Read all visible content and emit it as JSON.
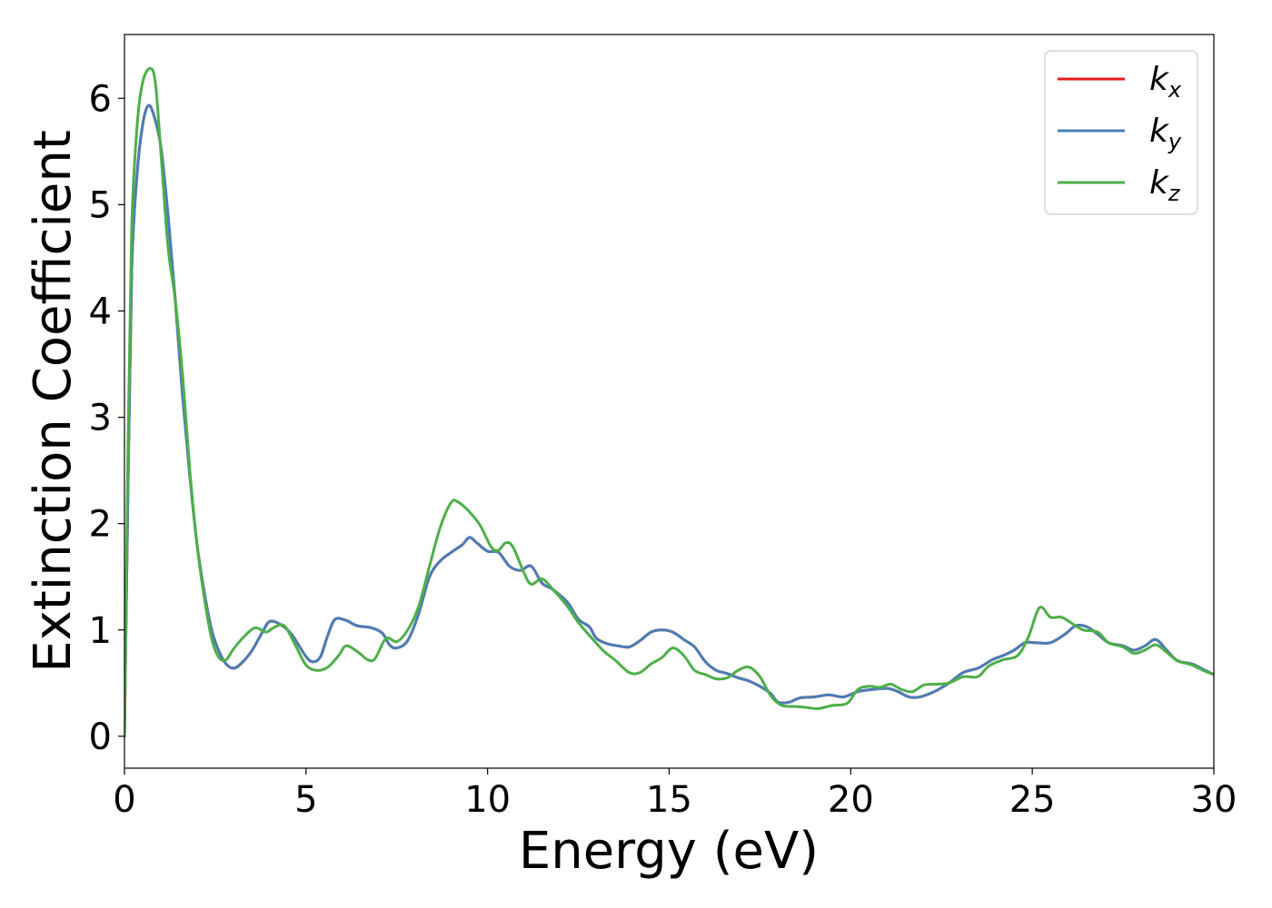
{
  "chart_data": {
    "type": "line",
    "xlabel": "Energy (eV)",
    "ylabel": "Extinction Coefficient",
    "xlim": [
      0,
      30
    ],
    "ylim": [
      -0.3,
      6.6
    ],
    "xticks": [
      0,
      5,
      10,
      15,
      20,
      25,
      30
    ],
    "xtick_labels": [
      "0",
      "5",
      "10",
      "15",
      "20",
      "25",
      "30"
    ],
    "yticks": [
      0,
      1,
      2,
      3,
      4,
      5,
      6
    ],
    "ytick_labels": [
      "0",
      "1",
      "2",
      "3",
      "4",
      "5",
      "6"
    ],
    "grid": false,
    "legend_position": "top-right",
    "series": [
      {
        "name": "k_x",
        "legend_main": "k",
        "legend_sub": "x",
        "color": "#e41a1c",
        "points": [
          [
            0,
            0
          ],
          [
            0.1,
            2.4
          ],
          [
            0.2,
            4.4
          ],
          [
            0.35,
            5.3
          ],
          [
            0.5,
            5.75
          ],
          [
            0.65,
            5.93
          ],
          [
            0.8,
            5.85
          ],
          [
            1.0,
            5.55
          ],
          [
            1.2,
            4.9
          ],
          [
            1.4,
            4.1
          ],
          [
            1.6,
            3.2
          ],
          [
            1.8,
            2.45
          ],
          [
            2.0,
            1.8
          ],
          [
            2.2,
            1.35
          ],
          [
            2.4,
            1.0
          ],
          [
            2.6,
            0.8
          ],
          [
            2.8,
            0.68
          ],
          [
            3.0,
            0.64
          ],
          [
            3.2,
            0.68
          ],
          [
            3.5,
            0.8
          ],
          [
            3.8,
            0.98
          ],
          [
            4.0,
            1.08
          ],
          [
            4.3,
            1.05
          ],
          [
            4.6,
            0.96
          ],
          [
            5.0,
            0.75
          ],
          [
            5.2,
            0.7
          ],
          [
            5.4,
            0.75
          ],
          [
            5.6,
            0.95
          ],
          [
            5.8,
            1.1
          ],
          [
            6.1,
            1.09
          ],
          [
            6.4,
            1.04
          ],
          [
            6.8,
            1.02
          ],
          [
            7.1,
            0.97
          ],
          [
            7.3,
            0.86
          ],
          [
            7.5,
            0.83
          ],
          [
            7.8,
            0.9
          ],
          [
            8.1,
            1.15
          ],
          [
            8.4,
            1.5
          ],
          [
            8.7,
            1.65
          ],
          [
            9.0,
            1.73
          ],
          [
            9.3,
            1.8
          ],
          [
            9.5,
            1.87
          ],
          [
            9.7,
            1.82
          ],
          [
            10.0,
            1.74
          ],
          [
            10.3,
            1.73
          ],
          [
            10.6,
            1.6
          ],
          [
            10.9,
            1.56
          ],
          [
            11.2,
            1.6
          ],
          [
            11.5,
            1.44
          ],
          [
            11.8,
            1.38
          ],
          [
            12.2,
            1.26
          ],
          [
            12.5,
            1.1
          ],
          [
            12.8,
            1.03
          ],
          [
            13.0,
            0.92
          ],
          [
            13.3,
            0.87
          ],
          [
            13.6,
            0.85
          ],
          [
            13.9,
            0.84
          ],
          [
            14.2,
            0.9
          ],
          [
            14.5,
            0.98
          ],
          [
            14.8,
            1.0
          ],
          [
            15.1,
            0.98
          ],
          [
            15.4,
            0.91
          ],
          [
            15.7,
            0.84
          ],
          [
            16.0,
            0.7
          ],
          [
            16.3,
            0.62
          ],
          [
            16.6,
            0.59
          ],
          [
            16.9,
            0.55
          ],
          [
            17.2,
            0.52
          ],
          [
            17.5,
            0.47
          ],
          [
            17.8,
            0.4
          ],
          [
            18.0,
            0.32
          ],
          [
            18.3,
            0.32
          ],
          [
            18.6,
            0.36
          ],
          [
            19.0,
            0.37
          ],
          [
            19.4,
            0.39
          ],
          [
            19.8,
            0.37
          ],
          [
            20.2,
            0.42
          ],
          [
            20.6,
            0.44
          ],
          [
            21.0,
            0.45
          ],
          [
            21.3,
            0.42
          ],
          [
            21.6,
            0.37
          ],
          [
            21.9,
            0.37
          ],
          [
            22.3,
            0.42
          ],
          [
            22.7,
            0.5
          ],
          [
            23.1,
            0.6
          ],
          [
            23.5,
            0.64
          ],
          [
            23.9,
            0.72
          ],
          [
            24.2,
            0.76
          ],
          [
            24.5,
            0.81
          ],
          [
            24.8,
            0.88
          ],
          [
            25.1,
            0.88
          ],
          [
            25.5,
            0.88
          ],
          [
            25.9,
            0.96
          ],
          [
            26.2,
            1.04
          ],
          [
            26.5,
            1.03
          ],
          [
            26.8,
            0.96
          ],
          [
            27.1,
            0.88
          ],
          [
            27.5,
            0.85
          ],
          [
            27.8,
            0.81
          ],
          [
            28.1,
            0.85
          ],
          [
            28.4,
            0.91
          ],
          [
            28.7,
            0.81
          ],
          [
            29.0,
            0.71
          ],
          [
            29.4,
            0.68
          ],
          [
            29.7,
            0.63
          ],
          [
            30.0,
            0.58
          ]
        ]
      },
      {
        "name": "k_y",
        "legend_main": "k",
        "legend_sub": "y",
        "color": "#4a7eb5",
        "points": [
          [
            0,
            0
          ],
          [
            0.1,
            2.4
          ],
          [
            0.2,
            4.4
          ],
          [
            0.35,
            5.3
          ],
          [
            0.5,
            5.75
          ],
          [
            0.65,
            5.93
          ],
          [
            0.8,
            5.85
          ],
          [
            1.0,
            5.55
          ],
          [
            1.2,
            4.9
          ],
          [
            1.4,
            4.1
          ],
          [
            1.6,
            3.2
          ],
          [
            1.8,
            2.45
          ],
          [
            2.0,
            1.8
          ],
          [
            2.2,
            1.35
          ],
          [
            2.4,
            1.0
          ],
          [
            2.6,
            0.8
          ],
          [
            2.8,
            0.68
          ],
          [
            3.0,
            0.64
          ],
          [
            3.2,
            0.68
          ],
          [
            3.5,
            0.8
          ],
          [
            3.8,
            0.98
          ],
          [
            4.0,
            1.08
          ],
          [
            4.3,
            1.05
          ],
          [
            4.6,
            0.96
          ],
          [
            5.0,
            0.75
          ],
          [
            5.2,
            0.7
          ],
          [
            5.4,
            0.75
          ],
          [
            5.6,
            0.95
          ],
          [
            5.8,
            1.1
          ],
          [
            6.1,
            1.09
          ],
          [
            6.4,
            1.04
          ],
          [
            6.8,
            1.02
          ],
          [
            7.1,
            0.97
          ],
          [
            7.3,
            0.86
          ],
          [
            7.5,
            0.83
          ],
          [
            7.8,
            0.9
          ],
          [
            8.1,
            1.15
          ],
          [
            8.4,
            1.5
          ],
          [
            8.7,
            1.65
          ],
          [
            9.0,
            1.73
          ],
          [
            9.3,
            1.8
          ],
          [
            9.5,
            1.87
          ],
          [
            9.7,
            1.82
          ],
          [
            10.0,
            1.74
          ],
          [
            10.3,
            1.73
          ],
          [
            10.6,
            1.6
          ],
          [
            10.9,
            1.56
          ],
          [
            11.2,
            1.6
          ],
          [
            11.5,
            1.44
          ],
          [
            11.8,
            1.38
          ],
          [
            12.2,
            1.26
          ],
          [
            12.5,
            1.1
          ],
          [
            12.8,
            1.03
          ],
          [
            13.0,
            0.92
          ],
          [
            13.3,
            0.87
          ],
          [
            13.6,
            0.85
          ],
          [
            13.9,
            0.84
          ],
          [
            14.2,
            0.9
          ],
          [
            14.5,
            0.98
          ],
          [
            14.8,
            1.0
          ],
          [
            15.1,
            0.98
          ],
          [
            15.4,
            0.91
          ],
          [
            15.7,
            0.84
          ],
          [
            16.0,
            0.7
          ],
          [
            16.3,
            0.62
          ],
          [
            16.6,
            0.59
          ],
          [
            16.9,
            0.55
          ],
          [
            17.2,
            0.52
          ],
          [
            17.5,
            0.47
          ],
          [
            17.8,
            0.4
          ],
          [
            18.0,
            0.32
          ],
          [
            18.3,
            0.32
          ],
          [
            18.6,
            0.36
          ],
          [
            19.0,
            0.37
          ],
          [
            19.4,
            0.39
          ],
          [
            19.8,
            0.37
          ],
          [
            20.2,
            0.42
          ],
          [
            20.6,
            0.44
          ],
          [
            21.0,
            0.45
          ],
          [
            21.3,
            0.42
          ],
          [
            21.6,
            0.37
          ],
          [
            21.9,
            0.37
          ],
          [
            22.3,
            0.42
          ],
          [
            22.7,
            0.5
          ],
          [
            23.1,
            0.6
          ],
          [
            23.5,
            0.64
          ],
          [
            23.9,
            0.72
          ],
          [
            24.2,
            0.76
          ],
          [
            24.5,
            0.81
          ],
          [
            24.8,
            0.88
          ],
          [
            25.1,
            0.88
          ],
          [
            25.5,
            0.88
          ],
          [
            25.9,
            0.96
          ],
          [
            26.2,
            1.04
          ],
          [
            26.5,
            1.03
          ],
          [
            26.8,
            0.96
          ],
          [
            27.1,
            0.88
          ],
          [
            27.5,
            0.85
          ],
          [
            27.8,
            0.81
          ],
          [
            28.1,
            0.85
          ],
          [
            28.4,
            0.91
          ],
          [
            28.7,
            0.81
          ],
          [
            29.0,
            0.71
          ],
          [
            29.4,
            0.68
          ],
          [
            29.7,
            0.63
          ],
          [
            30.0,
            0.58
          ]
        ]
      },
      {
        "name": "k_z",
        "legend_main": "k",
        "legend_sub": "z",
        "color": "#4daf4a",
        "points": [
          [
            0,
            0
          ],
          [
            0.1,
            2.8
          ],
          [
            0.2,
            4.8
          ],
          [
            0.35,
            5.75
          ],
          [
            0.5,
            6.15
          ],
          [
            0.7,
            6.28
          ],
          [
            0.85,
            6.15
          ],
          [
            1.0,
            5.5
          ],
          [
            1.2,
            4.6
          ],
          [
            1.4,
            4.1
          ],
          [
            1.6,
            3.4
          ],
          [
            1.8,
            2.5
          ],
          [
            2.0,
            1.8
          ],
          [
            2.2,
            1.3
          ],
          [
            2.4,
            0.92
          ],
          [
            2.6,
            0.74
          ],
          [
            2.8,
            0.72
          ],
          [
            3.0,
            0.82
          ],
          [
            3.3,
            0.94
          ],
          [
            3.6,
            1.02
          ],
          [
            3.9,
            0.98
          ],
          [
            4.1,
            1.02
          ],
          [
            4.4,
            1.04
          ],
          [
            4.7,
            0.86
          ],
          [
            5.0,
            0.67
          ],
          [
            5.3,
            0.62
          ],
          [
            5.6,
            0.65
          ],
          [
            5.9,
            0.76
          ],
          [
            6.1,
            0.85
          ],
          [
            6.4,
            0.8
          ],
          [
            6.7,
            0.72
          ],
          [
            6.9,
            0.73
          ],
          [
            7.2,
            0.92
          ],
          [
            7.5,
            0.89
          ],
          [
            7.8,
            1.0
          ],
          [
            8.1,
            1.22
          ],
          [
            8.4,
            1.6
          ],
          [
            8.7,
            1.97
          ],
          [
            9.0,
            2.2
          ],
          [
            9.2,
            2.2
          ],
          [
            9.5,
            2.11
          ],
          [
            9.8,
            1.98
          ],
          [
            10.1,
            1.78
          ],
          [
            10.3,
            1.75
          ],
          [
            10.5,
            1.82
          ],
          [
            10.7,
            1.78
          ],
          [
            11.0,
            1.54
          ],
          [
            11.2,
            1.43
          ],
          [
            11.5,
            1.48
          ],
          [
            11.8,
            1.38
          ],
          [
            12.2,
            1.22
          ],
          [
            12.5,
            1.07
          ],
          [
            12.8,
            0.95
          ],
          [
            13.2,
            0.8
          ],
          [
            13.5,
            0.72
          ],
          [
            13.9,
            0.6
          ],
          [
            14.2,
            0.6
          ],
          [
            14.5,
            0.68
          ],
          [
            14.8,
            0.74
          ],
          [
            15.1,
            0.83
          ],
          [
            15.4,
            0.76
          ],
          [
            15.7,
            0.62
          ],
          [
            16.0,
            0.58
          ],
          [
            16.3,
            0.54
          ],
          [
            16.6,
            0.55
          ],
          [
            16.9,
            0.62
          ],
          [
            17.2,
            0.65
          ],
          [
            17.5,
            0.56
          ],
          [
            17.8,
            0.38
          ],
          [
            18.1,
            0.29
          ],
          [
            18.5,
            0.28
          ],
          [
            18.8,
            0.27
          ],
          [
            19.1,
            0.26
          ],
          [
            19.5,
            0.29
          ],
          [
            19.9,
            0.31
          ],
          [
            20.2,
            0.44
          ],
          [
            20.5,
            0.47
          ],
          [
            20.8,
            0.46
          ],
          [
            21.1,
            0.49
          ],
          [
            21.4,
            0.44
          ],
          [
            21.7,
            0.42
          ],
          [
            22.0,
            0.48
          ],
          [
            22.3,
            0.49
          ],
          [
            22.7,
            0.5
          ],
          [
            23.1,
            0.56
          ],
          [
            23.5,
            0.56
          ],
          [
            23.8,
            0.66
          ],
          [
            24.2,
            0.72
          ],
          [
            24.6,
            0.76
          ],
          [
            24.9,
            0.94
          ],
          [
            25.2,
            1.21
          ],
          [
            25.5,
            1.12
          ],
          [
            25.8,
            1.12
          ],
          [
            26.1,
            1.06
          ],
          [
            26.4,
            1.0
          ],
          [
            26.8,
            0.98
          ],
          [
            27.1,
            0.88
          ],
          [
            27.5,
            0.84
          ],
          [
            27.8,
            0.78
          ],
          [
            28.1,
            0.81
          ],
          [
            28.4,
            0.86
          ],
          [
            28.7,
            0.79
          ],
          [
            29.0,
            0.71
          ],
          [
            29.4,
            0.67
          ],
          [
            29.7,
            0.62
          ],
          [
            30.0,
            0.58
          ]
        ]
      }
    ]
  }
}
